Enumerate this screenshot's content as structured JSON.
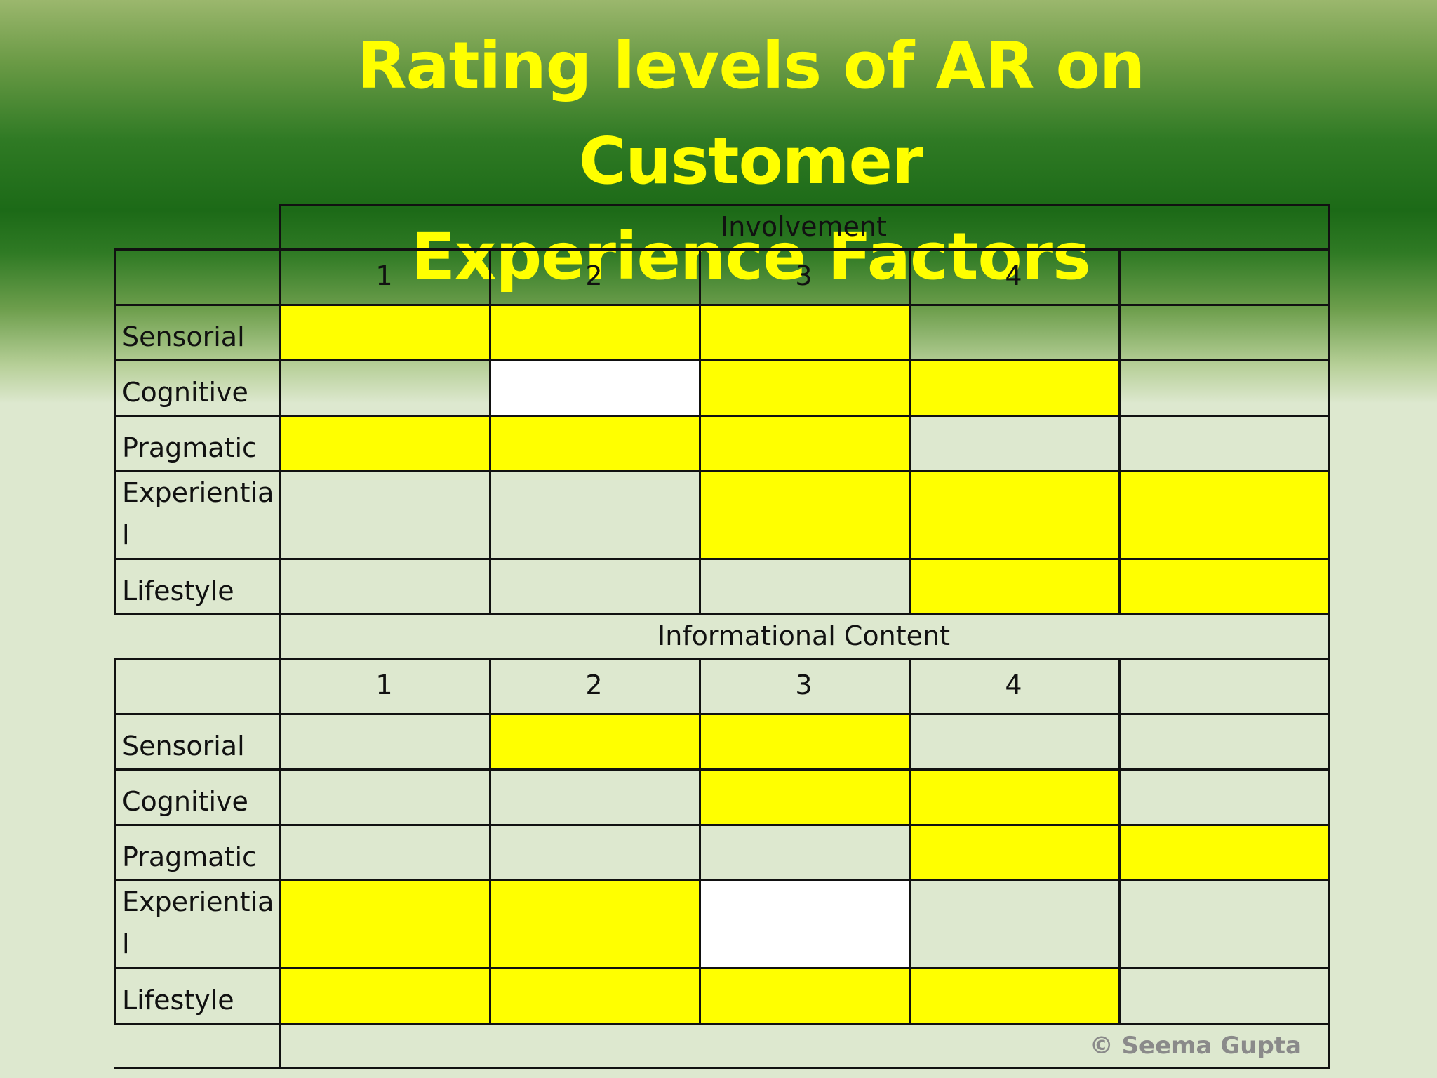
{
  "title_line1": "Rating levels of AR on Customer",
  "title_line2": "Experience Factors",
  "colors": {
    "highlight": "#ffff00",
    "blank": "#ffffff",
    "background": "#dde8cf",
    "title": "#ffff00"
  },
  "tables": [
    {
      "header": "Involvement",
      "columns": [
        "1",
        "2",
        "3",
        "4",
        ""
      ],
      "rows": [
        {
          "label": "Sensorial",
          "cells": [
            "yellow",
            "yellow",
            "yellow",
            "none",
            "none"
          ]
        },
        {
          "label": "Cognitive",
          "cells": [
            "none",
            "white",
            "yellow",
            "yellow",
            "none"
          ]
        },
        {
          "label": "Pragmatic",
          "cells": [
            "yellow",
            "yellow",
            "yellow",
            "none",
            "none"
          ]
        },
        {
          "label": "Experientia\nl",
          "cells": [
            "none",
            "none",
            "yellow",
            "yellow",
            "yellow"
          ]
        },
        {
          "label": "Lifestyle",
          "cells": [
            "none",
            "none",
            "none",
            "yellow",
            "yellow"
          ]
        }
      ]
    },
    {
      "header": "Informational Content",
      "columns": [
        "1",
        "2",
        "3",
        "4",
        ""
      ],
      "rows": [
        {
          "label": "Sensorial",
          "cells": [
            "none",
            "yellow",
            "yellow",
            "none",
            "none"
          ]
        },
        {
          "label": "Cognitive",
          "cells": [
            "none",
            "none",
            "yellow",
            "yellow",
            "none"
          ]
        },
        {
          "label": "Pragmatic",
          "cells": [
            "none",
            "none",
            "none",
            "yellow",
            "yellow"
          ]
        },
        {
          "label": "Experientia\nl",
          "cells": [
            "yellow",
            "yellow",
            "white",
            "none",
            "none"
          ]
        },
        {
          "label": "Lifestyle",
          "cells": [
            "yellow",
            "yellow",
            "yellow",
            "yellow",
            "none"
          ]
        }
      ]
    }
  ],
  "copyright": "© Seema Gupta"
}
